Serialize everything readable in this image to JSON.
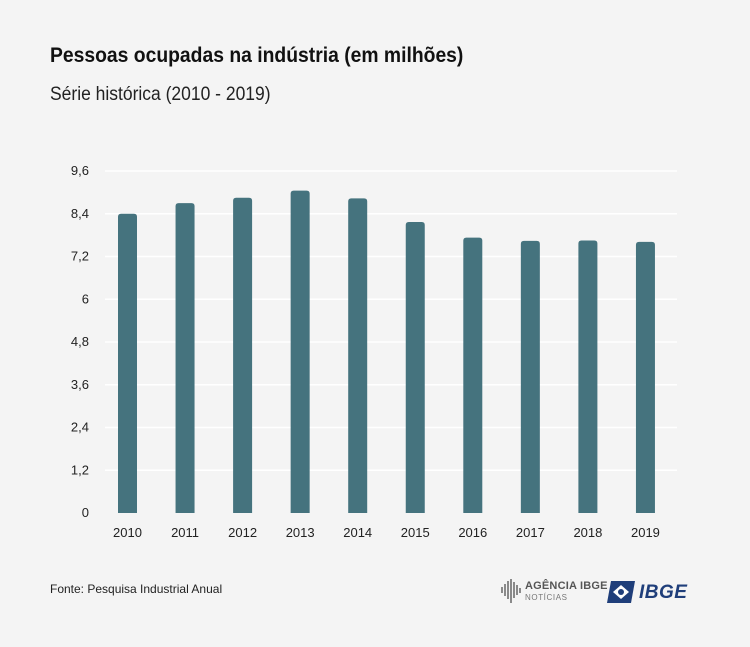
{
  "header": {
    "title": "Pessoas ocupadas na indústria (em milhões)",
    "subtitle": "Série histórica (2010 - 2019)"
  },
  "footer": {
    "source": "Fonte: Pesquisa Industrial Anual",
    "agencia_label": "AGÊNCIA IBGE",
    "agencia_sublabel": "NOTÍCIAS",
    "ibge_label": "IBGE"
  },
  "colors": {
    "bar": "#45737e",
    "background": "#f4f4f4",
    "gridline": "#ffffff",
    "brand_blue": "#1f3e7a"
  },
  "chart_data": {
    "type": "bar",
    "title": "Pessoas ocupadas na indústria (em milhões)",
    "subtitle": "Série histórica (2010 - 2019)",
    "xlabel": "",
    "ylabel": "",
    "categories": [
      "2010",
      "2011",
      "2012",
      "2013",
      "2014",
      "2015",
      "2016",
      "2017",
      "2018",
      "2019"
    ],
    "values": [
      8.4,
      8.7,
      8.85,
      9.05,
      8.83,
      8.17,
      7.73,
      7.64,
      7.65,
      7.61
    ],
    "ylim": [
      0,
      9.6
    ],
    "yticks": [
      0,
      1.2,
      2.4,
      3.6,
      4.8,
      6,
      7.2,
      8.4,
      9.6
    ],
    "ytick_labels": [
      "0",
      "1,2",
      "2,4",
      "3,6",
      "4,8",
      "6",
      "7,2",
      "8,4",
      "9,6"
    ],
    "grid": true,
    "legend": "none"
  }
}
